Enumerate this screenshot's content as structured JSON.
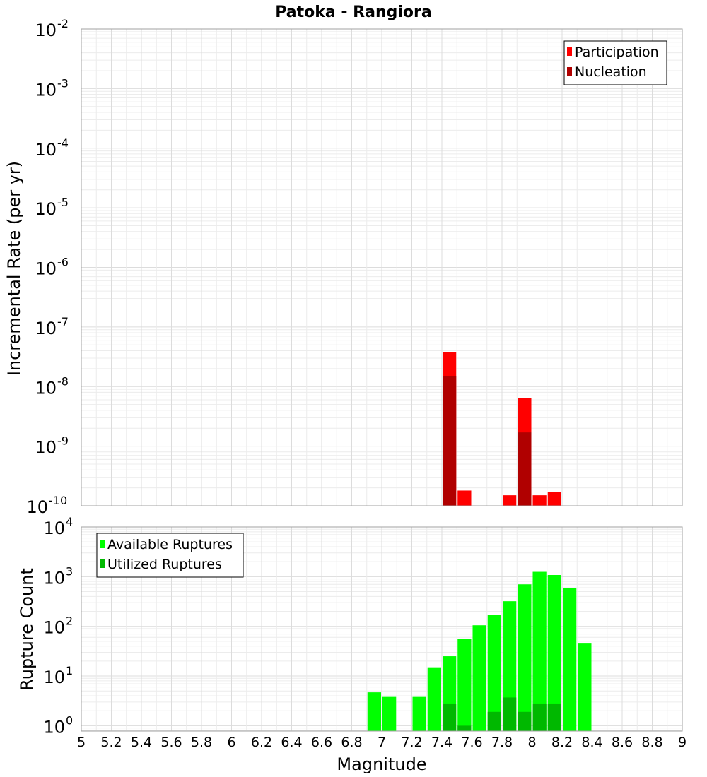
{
  "chart_data": [
    {
      "type": "bar",
      "title": "Patoka - Rangiora",
      "ylabel": "Incremental Rate (per yr)",
      "xlabel": "",
      "yscale": "log",
      "ylim": [
        1e-10,
        0.01
      ],
      "xlim": [
        5,
        9
      ],
      "bin_width": 0.1,
      "y_ticks": [
        {
          "base": "10",
          "exp": "-2",
          "value": 0.01
        },
        {
          "base": "10",
          "exp": "-3",
          "value": 0.001
        },
        {
          "base": "10",
          "exp": "-4",
          "value": 0.0001
        },
        {
          "base": "10",
          "exp": "-5",
          "value": 1e-05
        },
        {
          "base": "10",
          "exp": "-6",
          "value": 1e-06
        },
        {
          "base": "10",
          "exp": "-7",
          "value": 1e-07
        },
        {
          "base": "10",
          "exp": "-8",
          "value": 1e-08
        },
        {
          "base": "10",
          "exp": "-9",
          "value": 1e-09
        },
        {
          "base": "10",
          "exp": "-10",
          "value": 1e-10
        }
      ],
      "legend": {
        "position": "top-right",
        "entries": [
          "Participation",
          "Nucleation"
        ]
      },
      "series": [
        {
          "name": "Participation",
          "color": "#ff0000",
          "x": [
            7.45,
            7.55,
            7.85,
            7.95,
            8.05,
            8.15
          ],
          "values": [
            3.8e-08,
            1.8e-10,
            1.5e-10,
            6.5e-09,
            1.5e-10,
            1.7e-10
          ]
        },
        {
          "name": "Nucleation",
          "color": "#b00000",
          "x": [
            7.45,
            7.95
          ],
          "values": [
            1.5e-08,
            1.7e-09
          ]
        }
      ]
    },
    {
      "type": "bar",
      "title": "",
      "ylabel": "Rupture Count",
      "xlabel": "Magnitude",
      "yscale": "log",
      "ylim": [
        0.78,
        10000
      ],
      "xlim": [
        5,
        9
      ],
      "bin_width": 0.1,
      "x_ticks": [
        "5",
        "5.2",
        "5.4",
        "5.6",
        "5.8",
        "6",
        "6.2",
        "6.4",
        "6.6",
        "6.8",
        "7",
        "7.2",
        "7.4",
        "7.6",
        "7.8",
        "8",
        "8.2",
        "8.4",
        "8.6",
        "8.8",
        "9"
      ],
      "y_ticks": [
        {
          "base": "10",
          "exp": "4",
          "value": 10000
        },
        {
          "base": "10",
          "exp": "3",
          "value": 1000
        },
        {
          "base": "10",
          "exp": "2",
          "value": 100
        },
        {
          "base": "10",
          "exp": "1",
          "value": 10
        },
        {
          "base": "10",
          "exp": "0",
          "value": 1
        }
      ],
      "legend": {
        "position": "top-left",
        "entries": [
          "Available Ruptures",
          "Utilized Ruptures"
        ]
      },
      "series": [
        {
          "name": "Available Ruptures",
          "color": "#00ff00",
          "x": [
            6.95,
            7.05,
            7.25,
            7.35,
            7.45,
            7.55,
            7.65,
            7.75,
            7.85,
            7.95,
            8.05,
            8.15,
            8.25,
            8.35
          ],
          "values": [
            4.7,
            3.8,
            3.8,
            15,
            25,
            55,
            105,
            170,
            320,
            700,
            1250,
            1080,
            580,
            45
          ]
        },
        {
          "name": "Utilized Ruptures",
          "color": "#00b800",
          "x": [
            7.45,
            7.55,
            7.75,
            7.85,
            7.95,
            8.05,
            8.15
          ],
          "values": [
            2.8,
            1.0,
            1.9,
            3.7,
            1.9,
            2.8,
            2.8
          ]
        }
      ]
    }
  ]
}
